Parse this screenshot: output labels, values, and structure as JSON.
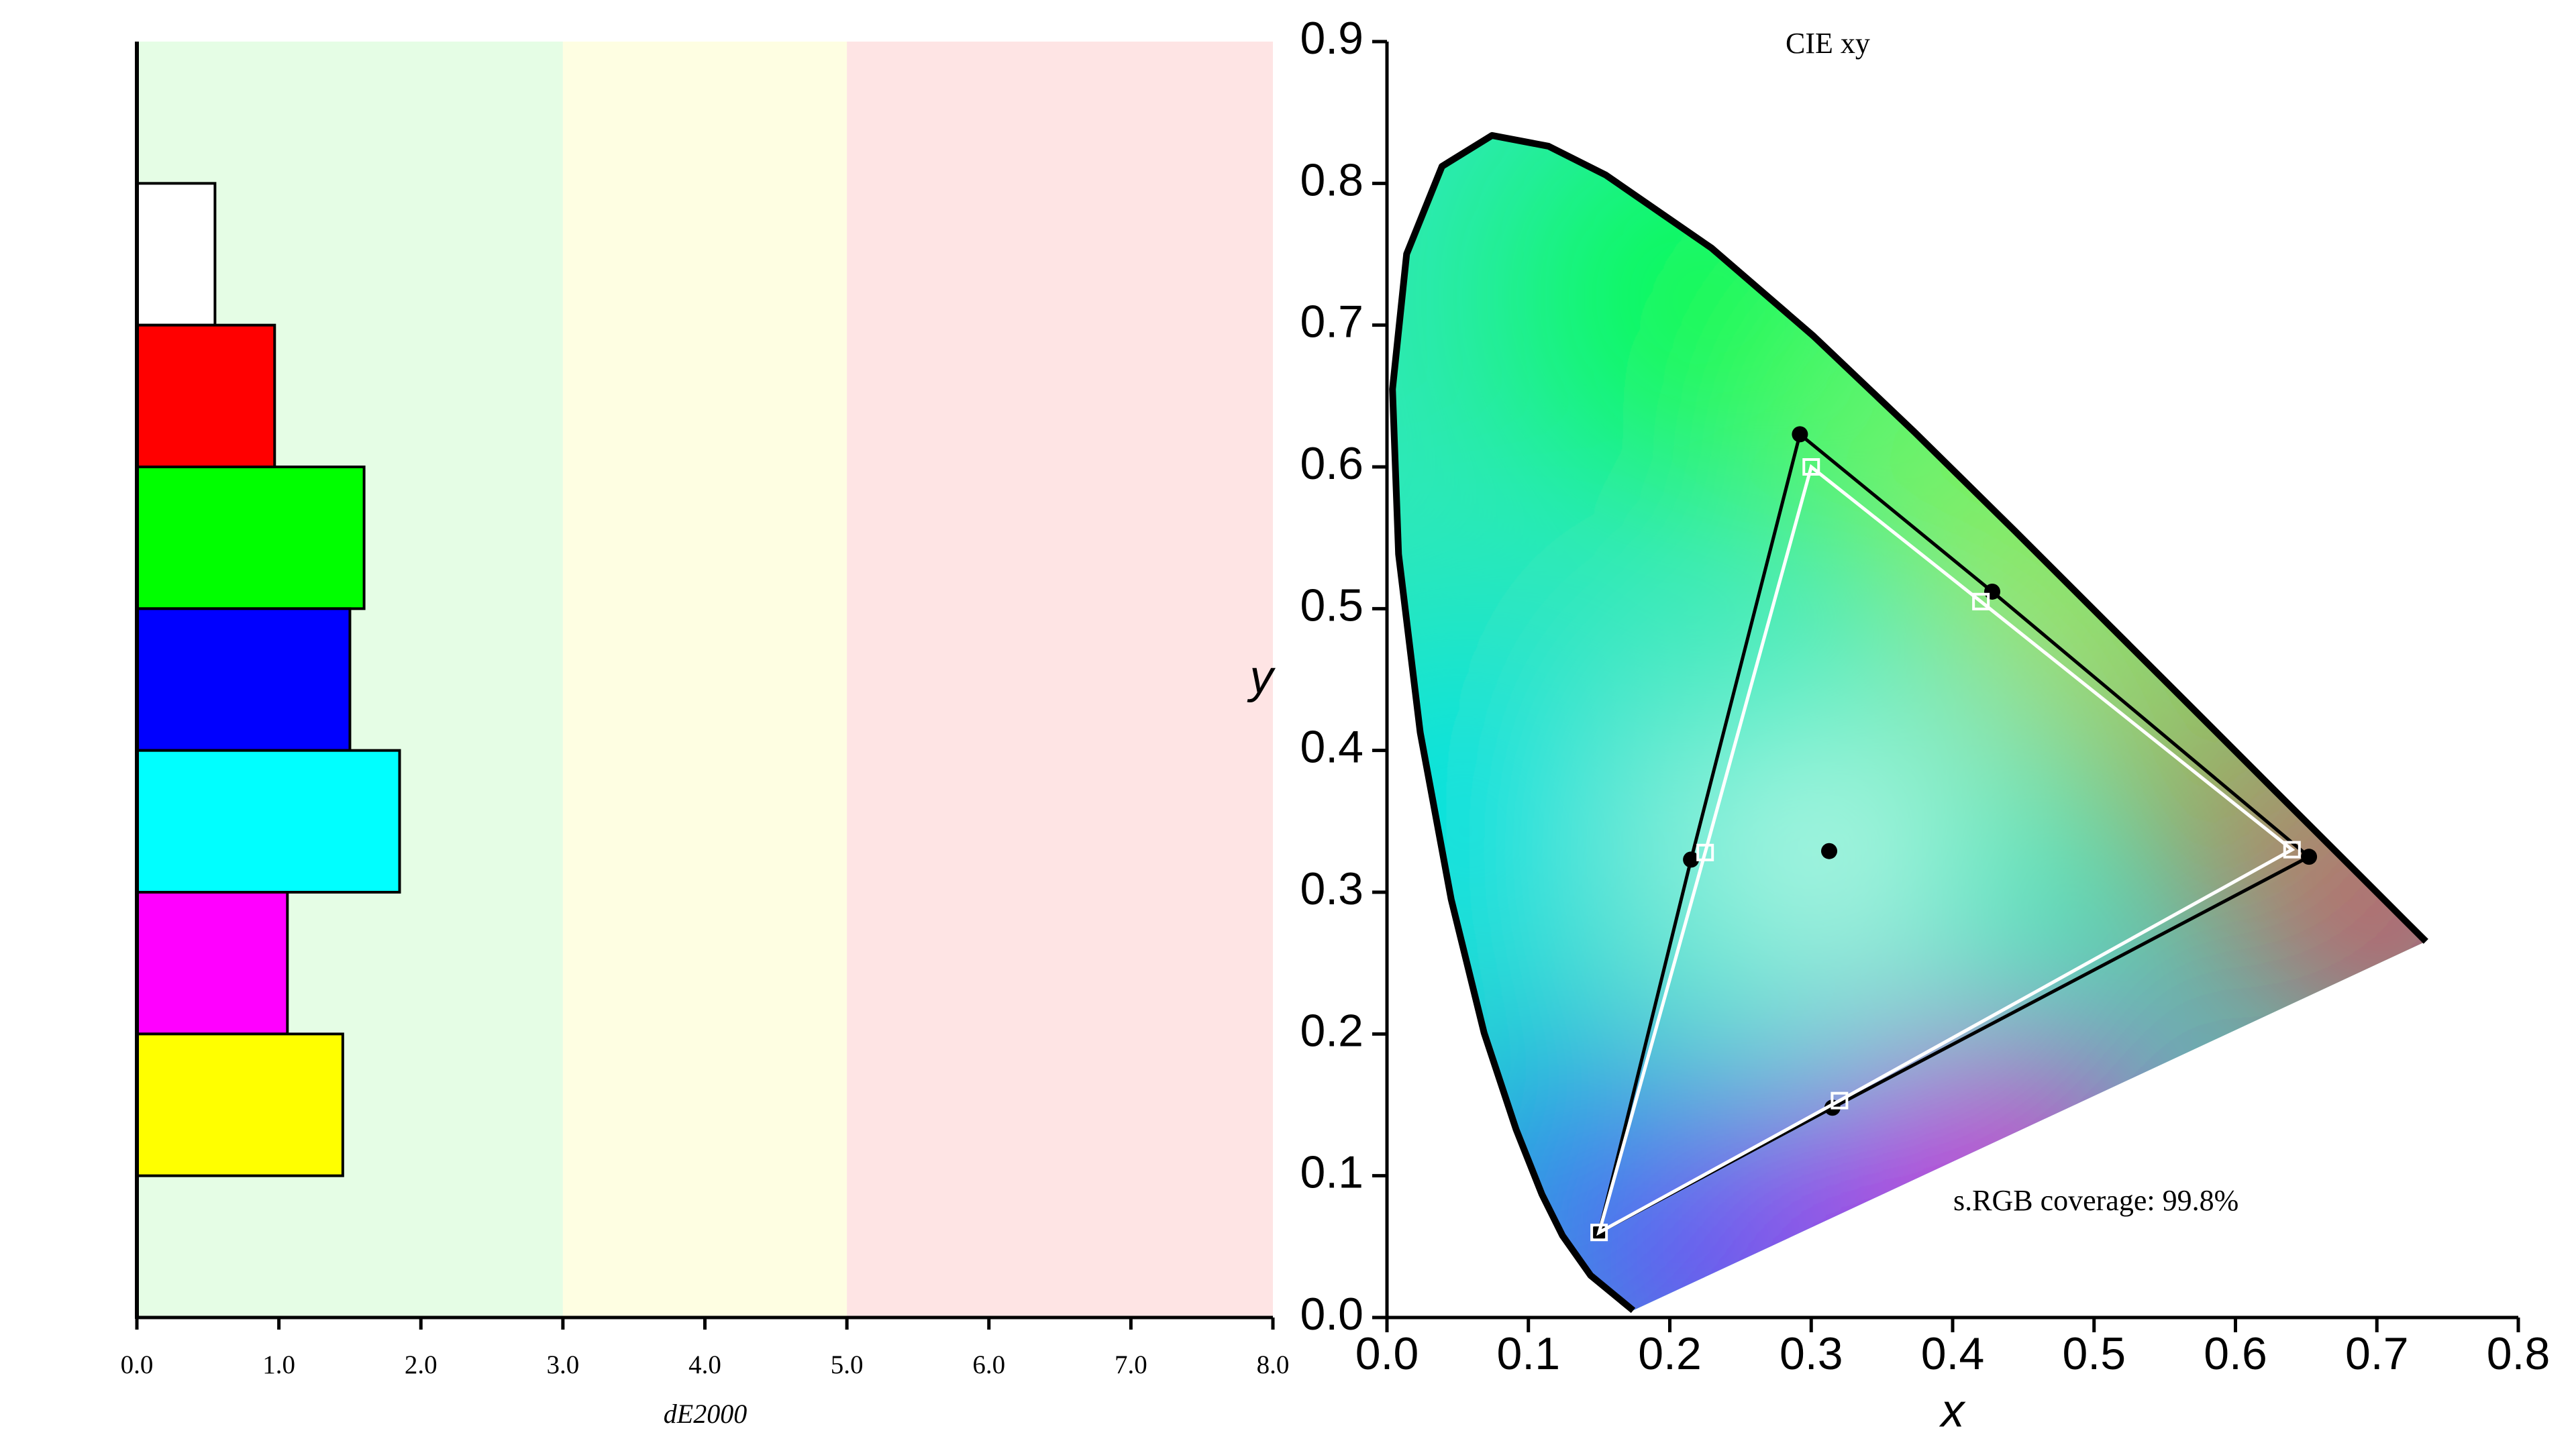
{
  "chart_data": [
    {
      "type": "bar",
      "orientation": "horizontal",
      "categories": [
        null,
        null,
        null,
        null,
        null,
        null,
        null
      ],
      "values": [
        0.55,
        0.97,
        1.6,
        1.5,
        1.85,
        1.06,
        1.45
      ],
      "colors": [
        "#ffffff",
        "#ff0000",
        "#00ff00",
        "#0000ff",
        "#00ffff",
        "#ff00ff",
        "#ffff00"
      ],
      "xlabel": "dE2000",
      "xlim": [
        0,
        8
      ],
      "xticks": [
        {
          "value": 0,
          "label": "0.0"
        },
        {
          "value": 1,
          "label": "1.0"
        },
        {
          "value": 2,
          "label": "2.0"
        },
        {
          "value": 3,
          "label": "3.0"
        },
        {
          "value": 4,
          "label": "4.0"
        },
        {
          "value": 5,
          "label": "5.0"
        },
        {
          "value": 6,
          "label": "6.0"
        },
        {
          "value": 7,
          "label": "7.0"
        },
        {
          "value": 8,
          "label": "8.0"
        }
      ],
      "bands": [
        {
          "from": 0,
          "to": 3,
          "color": "#e5fde5"
        },
        {
          "from": 3,
          "to": 5,
          "color": "#fefee2"
        },
        {
          "from": 5,
          "to": 8,
          "color": "#fee4e4"
        }
      ]
    },
    {
      "type": "scatter",
      "title": "CIE xy",
      "xlabel": "x",
      "ylabel": "y",
      "annotation": "s.RGB coverage: 99.8%",
      "xlim": [
        0,
        0.8
      ],
      "ylim": [
        0,
        0.9
      ],
      "xticks": [
        {
          "value": 0,
          "label": "0.0"
        },
        0.1,
        0.2,
        0.3,
        0.4,
        0.5,
        0.6,
        0.7,
        0.8
      ],
      "yticks": [
        {
          "value": 0,
          "label": "0.0"
        },
        0.1,
        0.2,
        0.3,
        0.4,
        0.5,
        0.6,
        0.7,
        0.8,
        0.9
      ],
      "locus": {
        "color": "#000000",
        "x": [
          0.1741,
          0.144,
          0.1241,
          0.1096,
          0.0913,
          0.0687,
          0.0454,
          0.0235,
          0.0082,
          0.0039,
          0.0139,
          0.0389,
          0.0743,
          0.1142,
          0.1547,
          0.2296,
          0.3016,
          0.3731,
          0.4441,
          0.5125,
          0.5752,
          0.627,
          0.6915,
          0.719,
          0.7347
        ],
        "values": [
          0.005,
          0.0297,
          0.0578,
          0.0868,
          0.1327,
          0.2007,
          0.295,
          0.4127,
          0.5384,
          0.6548,
          0.7502,
          0.812,
          0.8338,
          0.8262,
          0.8059,
          0.7543,
          0.6923,
          0.6245,
          0.5547,
          0.4866,
          0.4242,
          0.3725,
          0.3083,
          0.2809,
          0.2653
        ]
      },
      "series": [
        {
          "color": "#000000",
          "marker": "circle",
          "closed": true,
          "x": [
            0.652,
            0.428,
            0.292,
            0.215,
            0.15,
            0.315
          ],
          "values": [
            0.325,
            0.512,
            0.623,
            0.323,
            0.06,
            0.148
          ]
        },
        {
          "color": "#ffffff",
          "marker": "square",
          "closed": true,
          "x": [
            0.64,
            0.42,
            0.3,
            0.225,
            0.15,
            0.32
          ],
          "values": [
            0.33,
            0.505,
            0.6,
            0.328,
            0.06,
            0.153
          ]
        },
        {
          "color": "#000000",
          "marker": "circle",
          "closed": false,
          "x": [
            0.3127
          ],
          "values": [
            0.329
          ]
        }
      ]
    }
  ]
}
